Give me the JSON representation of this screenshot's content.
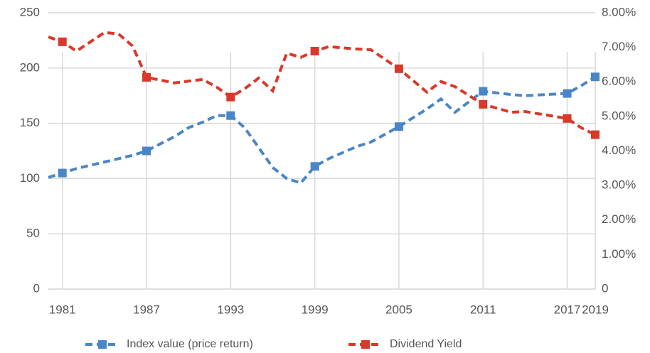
{
  "chart_data": {
    "type": "line",
    "x": [
      1980,
      1981,
      1982,
      1984,
      1985,
      1986,
      1987,
      1989,
      1990,
      1991,
      1992,
      1993,
      1994,
      1995,
      1996,
      1997,
      1998,
      1999,
      2000,
      2002,
      2003,
      2005,
      2007,
      2008,
      2009,
      2011,
      2013,
      2014,
      2017,
      2018,
      2019
    ],
    "xlim": [
      1980,
      2019
    ],
    "xticks": [
      1981,
      1987,
      1993,
      1999,
      2005,
      2011,
      2017,
      2019
    ],
    "ylim": [
      0,
      250
    ],
    "yticks": [
      0,
      50,
      100,
      150,
      200,
      250
    ],
    "y2lim": [
      0,
      8
    ],
    "y2ticks": [
      0,
      {
        "value": 1,
        "label": "1.00%"
      },
      {
        "value": 2,
        "label": "2.00%"
      },
      {
        "value": 3,
        "label": "3.00%"
      },
      {
        "value": 4,
        "label": "4.00%"
      },
      {
        "value": 5,
        "label": "5.00%"
      },
      {
        "value": 6,
        "label": "6.00%"
      },
      {
        "value": 7,
        "label": "7.00%"
      },
      {
        "value": 8,
        "label": "8.00%"
      }
    ],
    "grid": true,
    "series": [
      {
        "name": "Index value (price return)",
        "color": "#4a86c5",
        "values": [
          101,
          105,
          109,
          115,
          118,
          121,
          125,
          138,
          146,
          151,
          157,
          157,
          146,
          128,
          110,
          100,
          96,
          111,
          118,
          129,
          133,
          147,
          163,
          172,
          160,
          179,
          176,
          175,
          177,
          184,
          192
        ]
      },
      {
        "name": "Dividend Yield",
        "color": "#d9382a",
        "axis": "y2",
        "values": [
          7.3,
          7.16,
          6.89,
          7.43,
          7.39,
          7.04,
          6.13,
          5.97,
          6.02,
          6.07,
          5.85,
          5.56,
          5.8,
          6.11,
          5.74,
          6.83,
          6.71,
          6.89,
          7.02,
          6.95,
          6.93,
          6.38,
          5.7,
          6.01,
          5.86,
          5.35,
          5.12,
          5.14,
          4.94,
          4.67,
          4.47
        ]
      }
    ]
  }
}
